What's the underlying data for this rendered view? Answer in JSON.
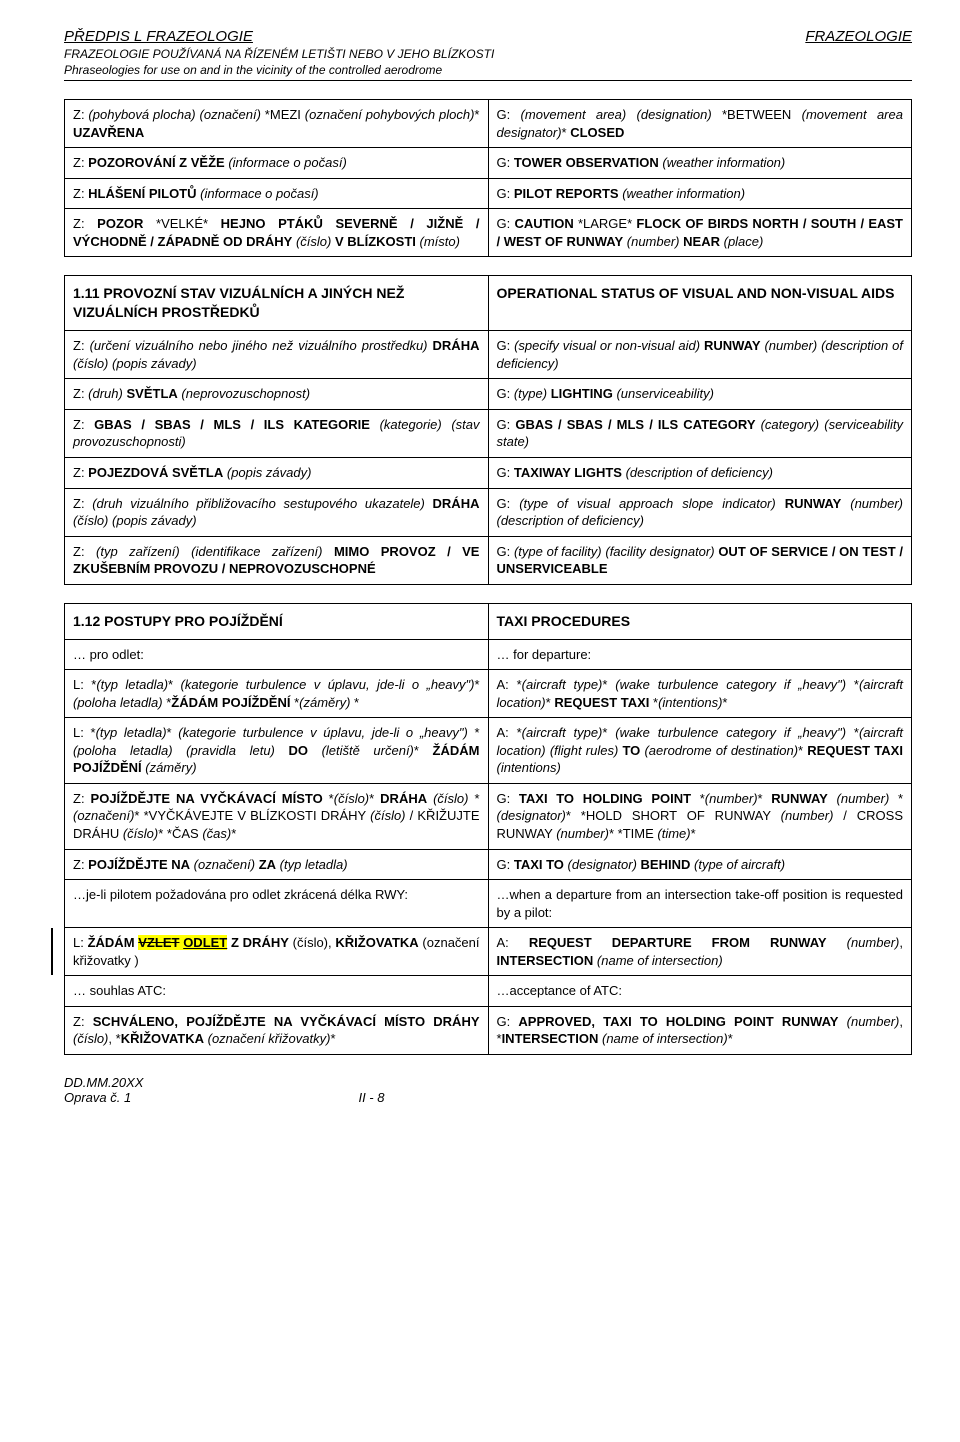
{
  "header": {
    "left": "PŘEDPIS L FRAZEOLOGIE",
    "right": "FRAZEOLOGIE",
    "sub1": "FRAZEOLOGIE POUŽÍVANÁ NA ŘÍZENÉM LETIŠTI NEBO V JEHO BLÍZKOSTI",
    "sub2": "Phraseologies for use on and in the vicinity of the controlled aerodrome"
  },
  "table1": {
    "rows": [
      {
        "l": "Z: (pohybová plocha) (označení) *MEZI (označení pohybových ploch)* <b>UZAVŘENA</b>",
        "r": "G: (movement area) (designation) *BETWEEN (movement area designator)* <b>CLOSED</b>"
      },
      {
        "l": "Z: <b>POZOROVÁNÍ Z VĚŽE</b> (informace o počasí)",
        "r": "G: <b>TOWER OBSERVATION</b> (weather information)"
      },
      {
        "l": "Z: <b>HLÁŠENÍ PILOTŮ</b> (informace o počasí)",
        "r": "G: <b>PILOT REPORTS</b> (weather information)"
      },
      {
        "l": "Z: <b>POZOR</b> *VELKÉ* <b>HEJNO PTÁKŮ SEVERNĚ / JIŽNĚ / VÝCHODNĚ / ZÁPADNĚ OD DRÁHY</b> (číslo) <b>V BLÍZKOSTI</b> (místo)",
        "r": "G: <b>CAUTION</b> *LARGE* <b>FLOCK OF BIRDS NORTH / SOUTH / EAST / WEST OF RUNWAY</b> (number) <b>NEAR</b> (place)"
      }
    ]
  },
  "table2": {
    "title_l": "1.11  PROVOZNÍ STAV VIZUÁLNÍCH A JINÝCH NEŽ VIZUÁLNÍCH PROSTŘEDKŮ",
    "title_r": "OPERATIONAL STATUS OF VISUAL AND NON-VISUAL AIDS",
    "rows": [
      {
        "l": "Z: (určení vizuálního nebo jiného než vizuálního prostředku) <b>DRÁHA</b> (číslo) (popis závady)",
        "r": "G: (specify visual or non-visual aid) <b>RUNWAY</b> (number) (description of deficiency)"
      },
      {
        "l": "Z: (druh) <b>SVĚTLA</b> (neprovozuschopnost)",
        "r": "G: (type) <b>LIGHTING</b> (unserviceability)"
      },
      {
        "l": "Z: <b>GBAS / SBAS / MLS / ILS KATEGORIE</b> (kategorie) (stav provozuschopnosti)",
        "r": "G: <b>GBAS / SBAS / MLS / ILS CATEGORY</b> (category) (serviceability state)"
      },
      {
        "l": "Z: <b>POJEZDOVÁ SVĚTLA</b> (popis závady)",
        "r": "G: <b>TAXIWAY LIGHTS</b> (description of deficiency)"
      },
      {
        "l": "Z: (druh vizuálního přibližovacího sestupového ukazatele) <b>DRÁHA</b> (číslo) (popis závady)",
        "r": "G: (type of visual approach slope indicator) <b>RUNWAY</b> (number) (description of deficiency)"
      },
      {
        "l": "Z: (typ zařízení) (identifikace zařízení) <b>MIMO PROVOZ / VE ZKUŠEBNÍM PROVOZU / NEPROVOZUSCHOPNÉ</b>",
        "r": "G: (type of facility) (facility designator) <b>OUT OF SERVICE / ON TEST / UNSERVICEABLE</b>"
      }
    ]
  },
  "table3": {
    "title_l": "1.12  POSTUPY PRO POJÍŽDĚNÍ",
    "title_r": "TAXI PROCEDURES",
    "rows": [
      {
        "l": "… pro odlet:",
        "r": "… for departure:"
      },
      {
        "l": "L: *(typ letadla)* (kategorie turbulence v úplavu, jde-li o „heavy\")*(poloha letadla) *<b>ŽÁDÁM POJÍŽDĚNÍ</b> *(záměry) *",
        "r": "A: *(aircraft type)* (wake turbulence category if „heavy\") *(aircraft location)* <b>REQUEST TAXI</b> *(intentions)*"
      },
      {
        "l": "L: *(typ letadla)* (kategorie turbulence v úplavu, jde-li o „heavy\") *(poloha letadla) (pravidla letu) <b>DO</b> (letiště určení)* <b>ŽÁDÁM POJÍŽDĚNÍ</b> (záměry)",
        "r": "A: *(aircraft type)* (wake turbulence category if „heavy\") *(aircraft location) (flight rules) <b>TO</b> (aerodrome of destination)* <b>REQUEST TAXI</b> (intentions)"
      },
      {
        "l": "Z: <b>POJÍŽDĚJTE NA VYČKÁVACÍ MÍSTO</b> *(číslo)* <b>DRÁHA</b> (číslo) *(označení)* *VYČKÁVEJTE V BLÍZKOSTI DRÁHY (číslo) / KŘIŽUJTE DRÁHU (číslo)* *ČAS (čas)*",
        "r": "G: <b>TAXI TO HOLDING POINT</b> *(number)* <b>RUNWAY</b> (number) *(designator)* *HOLD SHORT OF RUNWAY (number) / CROSS RUNWAY (number)* *TIME (time)*"
      },
      {
        "l": "Z: <b>POJÍŽDĚJTE NA</b> (označení) <b>ZA</b> (typ letadla)",
        "r": "G: <b>TAXI TO</b> (designator) <b>BEHIND</b> (type of aircraft)"
      },
      {
        "l": "…je-li pilotem požadována pro odlet zkrácená délka RWY:",
        "r": "…when a departure from an intersection take-off position is requested by a pilot:"
      },
      {
        "l_html": "L: <b>ŽÁDÁM <span class='ylw'><span class='del'>VZLET</span> <span class='ins'>ODLET</span></span> Z DRÁHY</b> (číslo), <b>KŘIŽOVATKA</b> (označení křižovatky )",
        "r": "A: <b>REQUEST DEPARTURE FROM RUNWAY</b> (number), <b>INTERSECTION</b> (name of intersection)",
        "revbar": true
      },
      {
        "l": "… souhlas ATC:",
        "r": "…acceptance of ATC:"
      },
      {
        "l": "Z: <b>SCHVÁLENO, POJÍŽDĚJTE NA VYČKÁVACÍ MÍSTO DRÁHY</b> (číslo), *<b>KŘIŽOVATKA</b> (označení křižovatky)*",
        "r": "G: <b>APPROVED, TAXI TO HOLDING POINT RUNWAY</b> (number), *<b>INTERSECTION</b> (name of intersection)*"
      }
    ]
  },
  "footer": {
    "left1": "DD.MM.20XX",
    "left2": "Oprava č. 1",
    "center": "II - 8"
  }
}
